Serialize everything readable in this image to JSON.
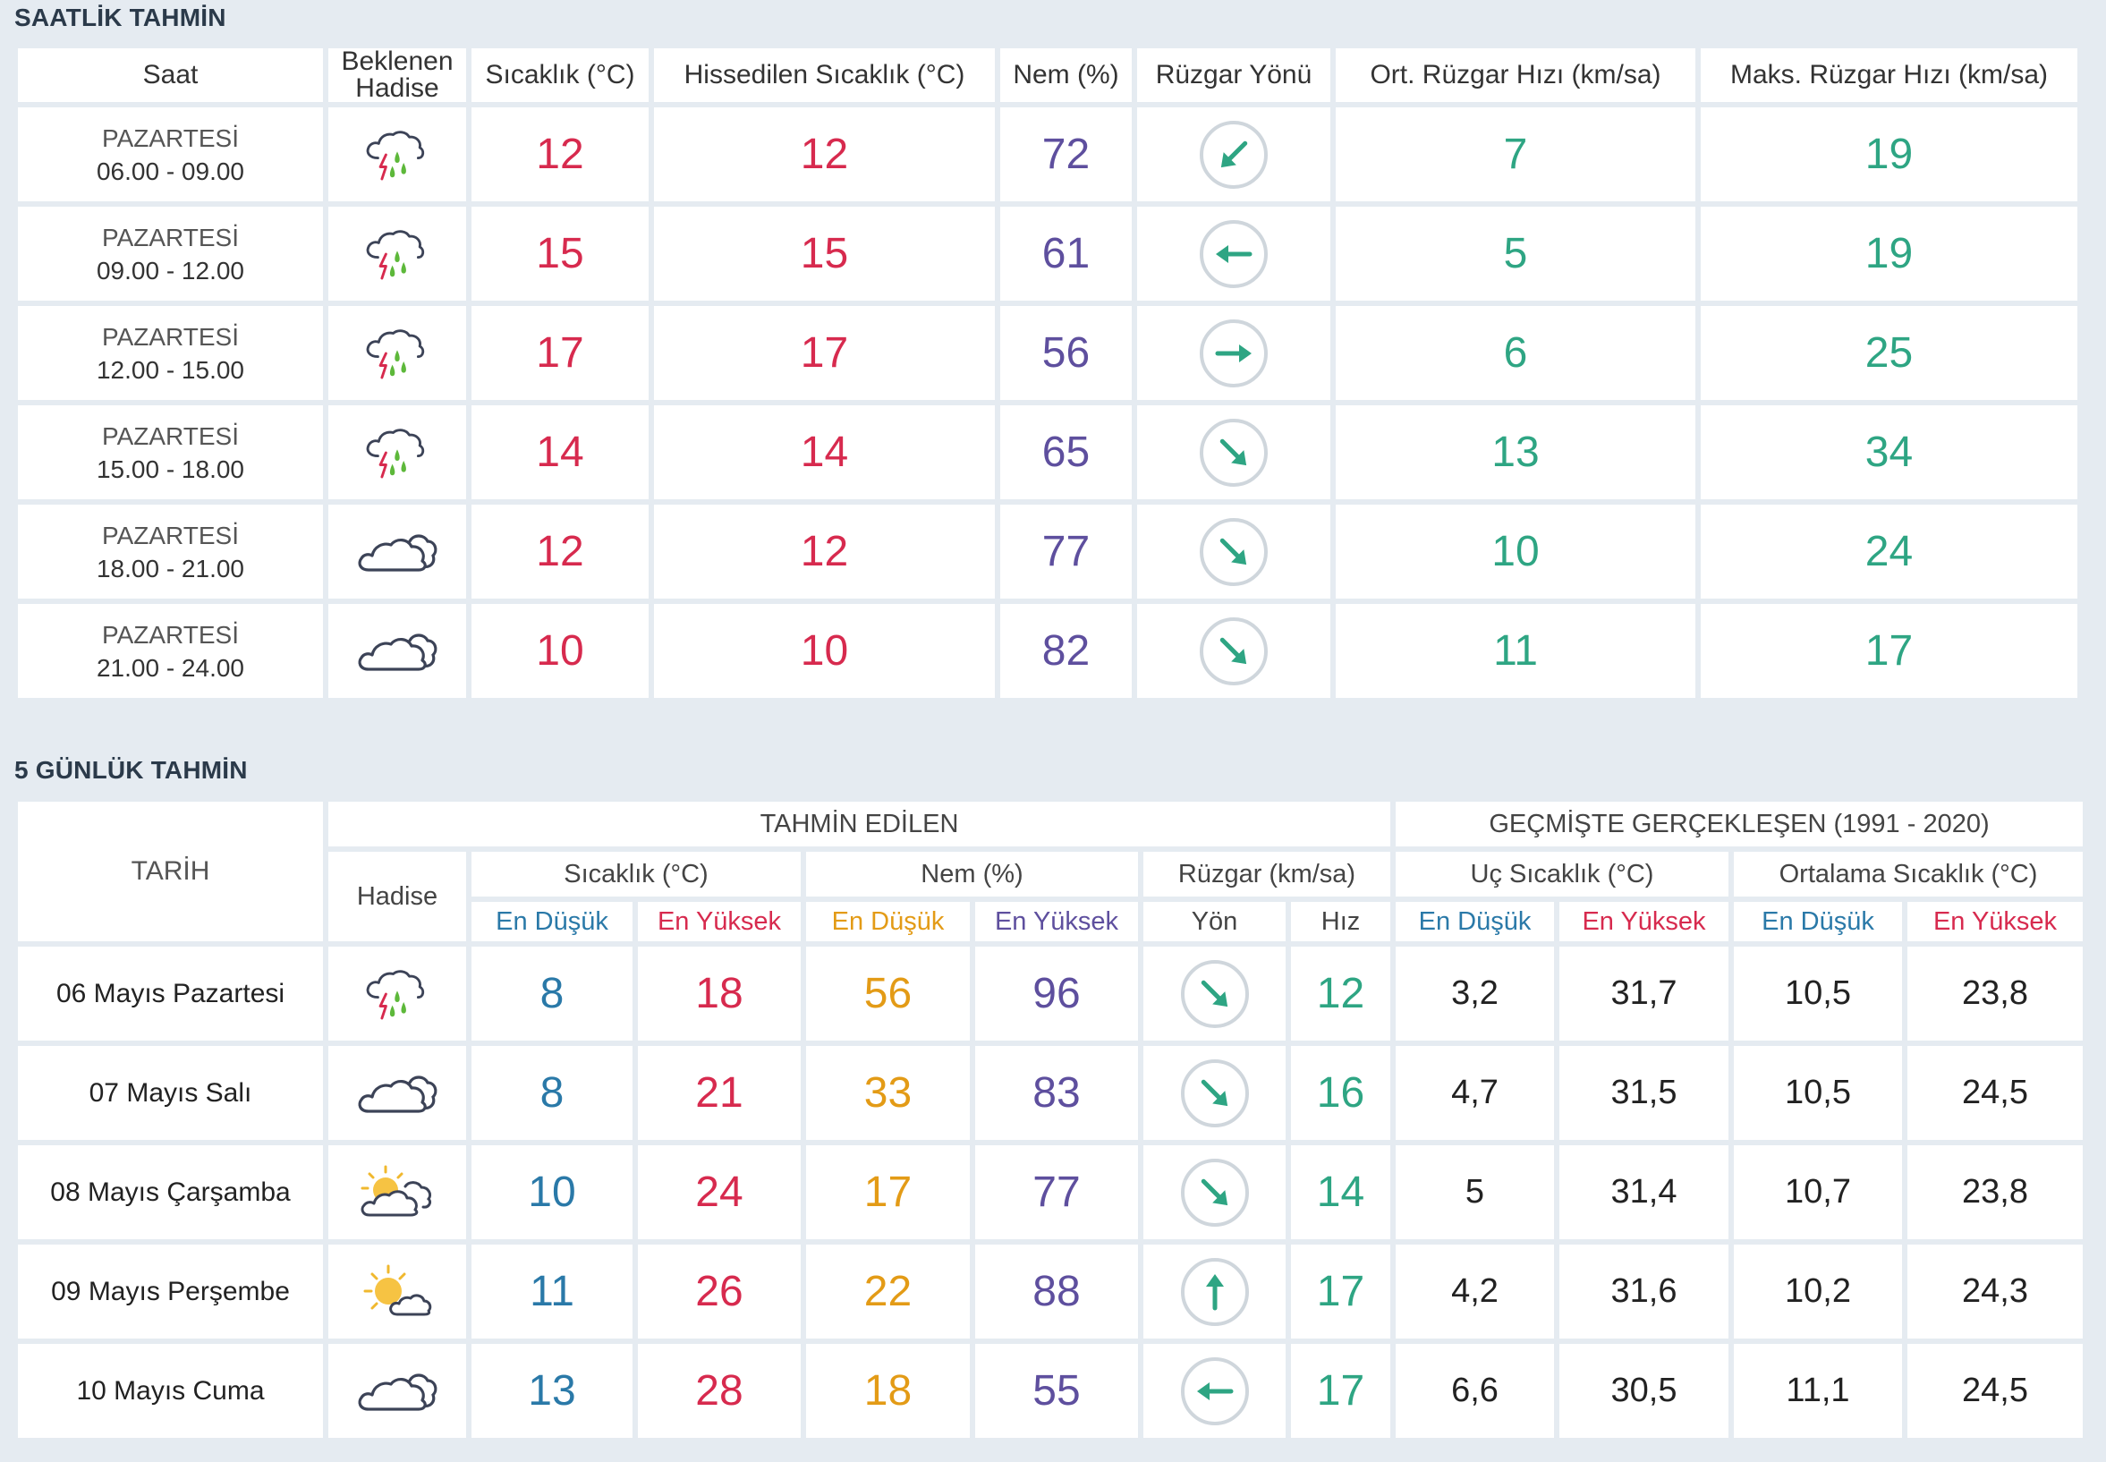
{
  "hourly": {
    "title": "SAATLİK TAHMİN",
    "headers": {
      "saat": "Saat",
      "hadise": "Beklenen Hadise",
      "sicaklik": "Sıcaklık (°C)",
      "hissedilen": "Hissedilen Sıcaklık (°C)",
      "nem": "Nem (%)",
      "ruzgar_yonu": "Rüzgar Yönü",
      "ort_ruzgar": "Ort. Rüzgar Hızı (km/sa)",
      "maks_ruzgar": "Maks. Rüzgar Hızı (km/sa)"
    },
    "rows": [
      {
        "day": "PAZARTESİ",
        "time": "06.00 - 09.00",
        "icon": "thunderstorm-rain-icon",
        "temp": "12",
        "feels": "12",
        "humidity": "72",
        "wind_dir_deg": 45,
        "wind_dir_icon": "arrow-southwest-icon",
        "avg_wind": "7",
        "max_wind": "19"
      },
      {
        "day": "PAZARTESİ",
        "time": "09.00 - 12.00",
        "icon": "thunderstorm-rain-icon",
        "temp": "15",
        "feels": "15",
        "humidity": "61",
        "wind_dir_deg": 90,
        "wind_dir_icon": "arrow-west-icon",
        "avg_wind": "5",
        "max_wind": "19"
      },
      {
        "day": "PAZARTESİ",
        "time": "12.00 - 15.00",
        "icon": "thunderstorm-rain-icon",
        "temp": "17",
        "feels": "17",
        "humidity": "56",
        "wind_dir_deg": 270,
        "wind_dir_icon": "arrow-east-icon",
        "avg_wind": "6",
        "max_wind": "25"
      },
      {
        "day": "PAZARTESİ",
        "time": "15.00 - 18.00",
        "icon": "thunderstorm-rain-icon",
        "temp": "14",
        "feels": "14",
        "humidity": "65",
        "wind_dir_deg": 315,
        "wind_dir_icon": "arrow-southeast-icon",
        "avg_wind": "13",
        "max_wind": "34"
      },
      {
        "day": "PAZARTESİ",
        "time": "18.00 - 21.00",
        "icon": "cloudy-icon",
        "temp": "12",
        "feels": "12",
        "humidity": "77",
        "wind_dir_deg": 315,
        "wind_dir_icon": "arrow-southeast-icon",
        "avg_wind": "10",
        "max_wind": "24"
      },
      {
        "day": "PAZARTESİ",
        "time": "21.00 - 24.00",
        "icon": "cloudy-icon",
        "temp": "10",
        "feels": "10",
        "humidity": "82",
        "wind_dir_deg": 315,
        "wind_dir_icon": "arrow-southeast-icon",
        "avg_wind": "11",
        "max_wind": "17"
      }
    ]
  },
  "daily": {
    "title": "5 GÜNLÜK TAHMİN",
    "headers": {
      "tarih": "TARİH",
      "tahmin": "TAHMİN EDİLEN",
      "gecmis": "GEÇMİŞTE GERÇEKLEŞEN (1991 - 2020)",
      "hadise": "Hadise",
      "sicaklik": "Sıcaklık (°C)",
      "nem": "Nem (%)",
      "ruzgar": "Rüzgar (km/sa)",
      "uc_sicaklik": "Uç Sıcaklık (°C)",
      "ort_sicaklik": "Ortalama Sıcaklık (°C)",
      "en_dusuk": "En Düşük",
      "en_yuksek": "En Yüksek",
      "yon": "Yön",
      "hiz": "Hız"
    },
    "rows": [
      {
        "date": "06 Mayıs Pazartesi",
        "icon": "thunderstorm-rain-icon",
        "tmin": "8",
        "tmax": "18",
        "hmin": "56",
        "hmax": "96",
        "wind_dir_deg": 315,
        "wind_dir_icon": "arrow-southeast-icon",
        "wind_speed": "12",
        "ext_min": "3,2",
        "ext_max": "31,7",
        "avg_min": "10,5",
        "avg_max": "23,8"
      },
      {
        "date": "07 Mayıs Salı",
        "icon": "cloudy-icon",
        "tmin": "8",
        "tmax": "21",
        "hmin": "33",
        "hmax": "83",
        "wind_dir_deg": 315,
        "wind_dir_icon": "arrow-southeast-icon",
        "wind_speed": "16",
        "ext_min": "4,7",
        "ext_max": "31,5",
        "avg_min": "10,5",
        "avg_max": "24,5"
      },
      {
        "date": "08 Mayıs Çarşamba",
        "icon": "partly-cloudy-icon",
        "tmin": "10",
        "tmax": "24",
        "hmin": "17",
        "hmax": "77",
        "wind_dir_deg": 315,
        "wind_dir_icon": "arrow-southeast-icon",
        "wind_speed": "14",
        "ext_min": "5",
        "ext_max": "31,4",
        "avg_min": "10,7",
        "avg_max": "23,8"
      },
      {
        "date": "09 Mayıs Perşembe",
        "icon": "sun-cloud-icon",
        "tmin": "11",
        "tmax": "26",
        "hmin": "22",
        "hmax": "88",
        "wind_dir_deg": 180,
        "wind_dir_icon": "arrow-north-icon",
        "wind_speed": "17",
        "ext_min": "4,2",
        "ext_max": "31,6",
        "avg_min": "10,2",
        "avg_max": "24,3"
      },
      {
        "date": "10 Mayıs Cuma",
        "icon": "cloudy-icon",
        "tmin": "13",
        "tmax": "28",
        "hmin": "18",
        "hmax": "55",
        "wind_dir_deg": 90,
        "wind_dir_icon": "arrow-west-icon",
        "wind_speed": "17",
        "ext_min": "6,6",
        "ext_max": "30,5",
        "avg_min": "11,1",
        "avg_max": "24,5"
      }
    ]
  },
  "colors": {
    "temperature": "#d72a4e",
    "humidity": "#5e4f9e",
    "wind": "#2ea583",
    "min_temp": "#2a79a8",
    "min_humidity": "#e39b16"
  }
}
